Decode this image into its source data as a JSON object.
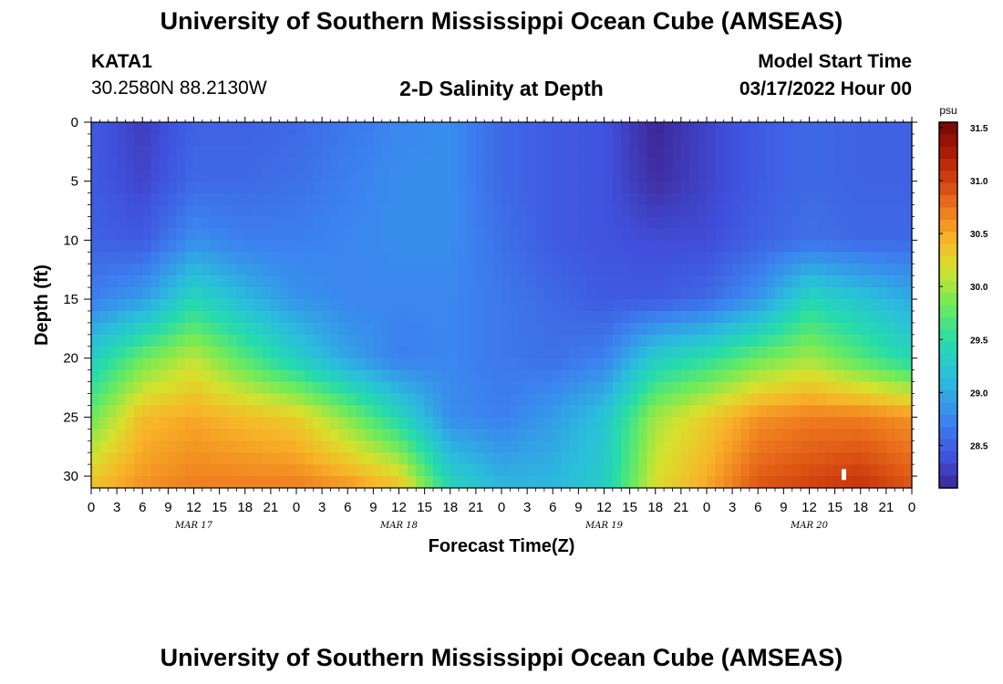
{
  "header": {
    "title": "University of Southern Mississippi Ocean Cube (AMSEAS)",
    "station_id": "KATA1",
    "coords": "30.2580N  88.2130W",
    "plot_title": "2-D Salinity at Depth",
    "model_start_label": "Model Start Time",
    "model_start_value": "03/17/2022 Hour 00"
  },
  "footer": {
    "title": "University of Southern Mississippi Ocean Cube (AMSEAS)"
  },
  "chart_data": {
    "type": "heatmap",
    "variable": "Salinity",
    "units": "psu",
    "xlabel": "Forecast Time(Z)",
    "ylabel": "Depth (ft)",
    "x_hours_range": [
      0,
      96
    ],
    "x_tick_interval_hours": 3,
    "x_tick_labels": [
      "0",
      "3",
      "6",
      "9",
      "12",
      "15",
      "18",
      "21",
      "0",
      "3",
      "6",
      "9",
      "12",
      "15",
      "18",
      "21",
      "0",
      "3",
      "6",
      "9",
      "12",
      "15",
      "18",
      "21",
      "0",
      "3",
      "6",
      "9",
      "12",
      "15",
      "18",
      "21",
      "0"
    ],
    "x_date_labels": [
      {
        "label": "MAR 17",
        "hour": 12
      },
      {
        "label": "MAR 18",
        "hour": 36
      },
      {
        "label": "MAR 19",
        "hour": 60
      },
      {
        "label": "MAR 20",
        "hour": 84
      }
    ],
    "y_range": [
      0,
      31
    ],
    "y_ticks": [
      0,
      5,
      10,
      15,
      20,
      25,
      30
    ],
    "y_reversed": true,
    "colorbar": {
      "range": [
        28.1,
        31.55
      ],
      "ticks": [
        "28.5",
        "29.0",
        "29.5",
        "30.0",
        "30.5",
        "31.0",
        "31.5"
      ]
    },
    "grid_hours": [
      0,
      6,
      12,
      18,
      24,
      30,
      36,
      42,
      48,
      54,
      60,
      66,
      72,
      78,
      84,
      90,
      96
    ],
    "grid_depths_ft": [
      0,
      5,
      10,
      15,
      20,
      25,
      31
    ],
    "salinity_grid": [
      [
        28.45,
        28.25,
        28.5,
        28.5,
        28.55,
        28.65,
        28.75,
        28.8,
        28.55,
        28.45,
        28.4,
        28.1,
        28.3,
        28.45,
        28.55,
        28.5,
        28.5
      ],
      [
        28.45,
        28.3,
        28.55,
        28.55,
        28.6,
        28.7,
        28.8,
        28.8,
        28.55,
        28.45,
        28.4,
        28.15,
        28.3,
        28.45,
        28.55,
        28.5,
        28.5
      ],
      [
        28.5,
        28.45,
        28.8,
        28.7,
        28.7,
        28.75,
        28.8,
        28.8,
        28.6,
        28.45,
        28.4,
        28.35,
        28.35,
        28.5,
        28.6,
        28.55,
        28.55
      ],
      [
        28.7,
        28.9,
        29.4,
        29.1,
        28.85,
        28.75,
        28.75,
        28.75,
        28.65,
        28.55,
        28.45,
        28.45,
        28.55,
        28.85,
        29.4,
        29.2,
        29.0
      ],
      [
        29.3,
        29.8,
        30.1,
        29.7,
        29.3,
        28.95,
        28.7,
        28.75,
        28.65,
        28.6,
        28.7,
        29.3,
        29.5,
        29.8,
        30.0,
        29.7,
        29.4
      ],
      [
        29.8,
        30.4,
        30.5,
        30.4,
        30.3,
        29.9,
        29.4,
        28.8,
        28.7,
        28.9,
        29.2,
        30.0,
        30.3,
        30.6,
        30.7,
        30.7,
        30.6
      ],
      [
        30.4,
        30.6,
        30.7,
        30.7,
        30.7,
        30.6,
        30.4,
        29.4,
        29.1,
        29.1,
        29.3,
        30.2,
        30.5,
        30.9,
        31.0,
        31.1,
        30.9
      ]
    ]
  }
}
